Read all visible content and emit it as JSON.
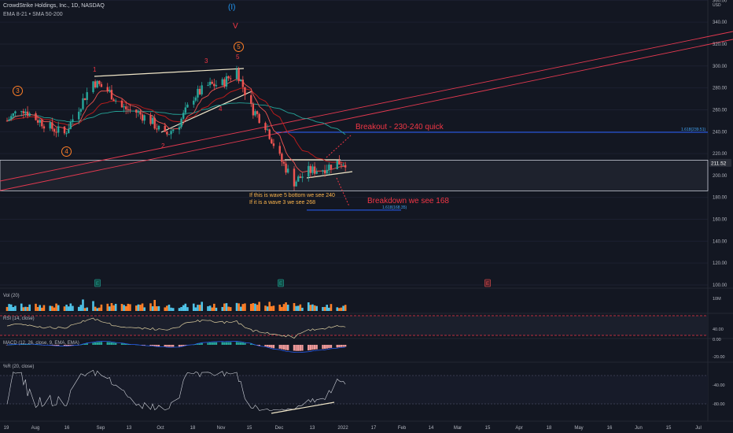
{
  "header": {
    "symbol_line": "CrowdStrike Holdings, Inc., 1D, NASDAQ",
    "indicators_line": "EMA 8-21 • SMA 50-200"
  },
  "currency": "USD",
  "panes": {
    "volume": {
      "label": "Vol (20)",
      "ticks": [
        "10M"
      ]
    },
    "rsi": {
      "label": "RSI (14, close)",
      "ticks": [
        "40.00",
        "0.00"
      ]
    },
    "macd": {
      "label": "MACD (12, 26, close, 9, EMA, EMA)",
      "ticks": [
        "-20.00"
      ]
    },
    "williams": {
      "label": "%R (20, close)",
      "ticks": [
        "-40.00",
        "-80.00"
      ]
    }
  },
  "annotations": {
    "wave_degree_top": "(I)",
    "wave_v": "V",
    "circled_5": "5",
    "wave_5": "5",
    "wave_3_left": "3",
    "circled_3": "3",
    "circled_4": "4",
    "wave_1": "1",
    "wave_2": "2",
    "wave_4": "4",
    "breakout": "Breakout - 230-240 quick",
    "breakdown": "Breakdown we see 168",
    "note_line1": "If this is wave 5 bottom we see 240",
    "note_line2": "If it is a wave 3 we see 268",
    "fib_upper": "1.618(239.51)",
    "fib_lower": "1.618(168.35)",
    "earnings_marks": [
      "E",
      "E",
      "E"
    ]
  },
  "colors": {
    "background": "#131722",
    "up": "#26a69a",
    "down": "#ef5350",
    "ema8": "#ef5350",
    "ema21": "#b71c1c",
    "sma50": "#26a69a",
    "channel": "#e53950",
    "trend_white": "#f0e6c8",
    "wave_orange": "#ff7f27",
    "wave_red": "#f23645",
    "wave_blue": "#2196f3",
    "fib": "#2962ff",
    "range_box": "#1e222d",
    "last_price_bg": "#2a2e39"
  },
  "chart_data": {
    "type": "candlestick",
    "title": "CrowdStrike Holdings, Inc., 1D, NASDAQ",
    "ylabel": "USD",
    "ylim": [
      100,
      360
    ],
    "y_ticks": [
      100,
      120,
      140,
      160,
      180,
      200,
      220,
      240,
      260,
      280,
      300,
      320,
      340,
      360
    ],
    "x_tick_labels": [
      "19",
      "Aug",
      "16",
      "Sep",
      "13",
      "Oct",
      "18",
      "Nov",
      "15",
      "Dec",
      "13",
      "2022",
      "17",
      "Feb",
      "14",
      "Mar",
      "15",
      "Apr",
      "18",
      "May",
      "16",
      "Jun",
      "15",
      "Jul"
    ],
    "last_price": 211.52,
    "last_price_label": "211.52",
    "fib_levels": [
      {
        "label": "1.618(239.51)",
        "value": 239.51
      },
      {
        "label": "1.618(168.35)",
        "value": 168.35
      }
    ],
    "range_box": [
      186,
      214
    ],
    "anchor_closes": [
      {
        "date": "2021-07-19",
        "close": 250
      },
      {
        "date": "2021-07-26",
        "close": 262
      },
      {
        "date": "2021-08-02",
        "close": 252
      },
      {
        "date": "2021-08-09",
        "close": 244
      },
      {
        "date": "2021-08-16",
        "close": 238
      },
      {
        "date": "2021-08-23",
        "close": 262
      },
      {
        "date": "2021-08-30",
        "close": 286
      },
      {
        "date": "2021-09-07",
        "close": 276
      },
      {
        "date": "2021-09-13",
        "close": 262
      },
      {
        "date": "2021-09-20",
        "close": 258
      },
      {
        "date": "2021-09-27",
        "close": 250
      },
      {
        "date": "2021-10-04",
        "close": 236
      },
      {
        "date": "2021-10-11",
        "close": 248
      },
      {
        "date": "2021-10-18",
        "close": 272
      },
      {
        "date": "2021-10-25",
        "close": 282
      },
      {
        "date": "2021-11-01",
        "close": 284
      },
      {
        "date": "2021-11-08",
        "close": 296
      },
      {
        "date": "2021-11-15",
        "close": 262
      },
      {
        "date": "2021-11-22",
        "close": 246
      },
      {
        "date": "2021-11-29",
        "close": 216
      },
      {
        "date": "2021-12-06",
        "close": 194
      },
      {
        "date": "2021-12-13",
        "close": 204
      },
      {
        "date": "2021-12-20",
        "close": 206
      },
      {
        "date": "2021-12-27",
        "close": 212
      }
    ]
  }
}
